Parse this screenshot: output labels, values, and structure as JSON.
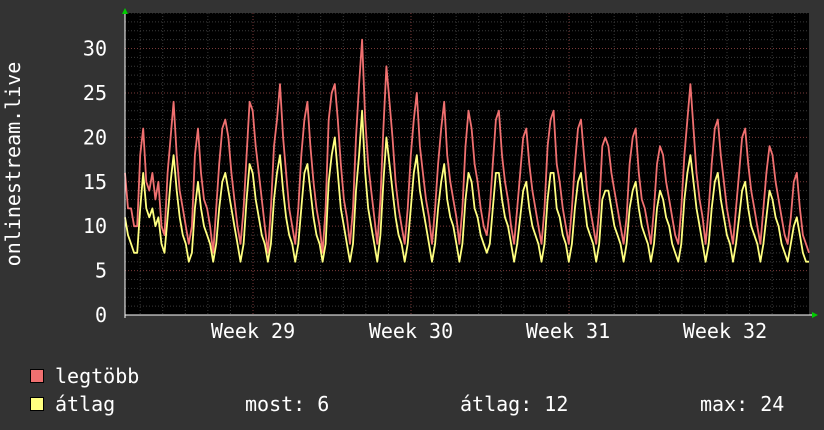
{
  "chart_data": {
    "type": "line",
    "ylabel": "onlinestream.live",
    "ylim": [
      0,
      34
    ],
    "y_ticks": [
      0,
      5,
      10,
      15,
      20,
      25,
      30
    ],
    "x_tick_labels": [
      "Week 29",
      "Week 30",
      "Week 31",
      "Week 32"
    ],
    "grid": true,
    "legend_placement": "bottom-left",
    "series": [
      {
        "name": "legtöbb",
        "color": "#f07070",
        "values": [
          16,
          12,
          12,
          10,
          10,
          18,
          21,
          15,
          14,
          16,
          13,
          15,
          10,
          9,
          16,
          20,
          24,
          18,
          14,
          12,
          10,
          8,
          10,
          18,
          21,
          16,
          13,
          12,
          10,
          7,
          12,
          17,
          21,
          22,
          20,
          16,
          13,
          10,
          8,
          12,
          18,
          24,
          23,
          19,
          16,
          13,
          10,
          7,
          12,
          19,
          22,
          26,
          20,
          16,
          12,
          10,
          8,
          12,
          18,
          22,
          24,
          19,
          15,
          12,
          10,
          7,
          12,
          22,
          25,
          26,
          22,
          17,
          13,
          11,
          8,
          12,
          20,
          26,
          31,
          22,
          17,
          14,
          11,
          8,
          13,
          21,
          28,
          24,
          20,
          15,
          12,
          10,
          8,
          12,
          18,
          22,
          25,
          19,
          16,
          13,
          11,
          8,
          12,
          17,
          21,
          24,
          18,
          15,
          13,
          11,
          8,
          12,
          19,
          23,
          21,
          17,
          15,
          12,
          10,
          9,
          12,
          17,
          22,
          23,
          18,
          15,
          13,
          10,
          8,
          12,
          16,
          20,
          21,
          17,
          14,
          12,
          10,
          8,
          12,
          19,
          22,
          23,
          17,
          15,
          12,
          10,
          8,
          12,
          17,
          21,
          22,
          18,
          14,
          12,
          10,
          8,
          12,
          19,
          20,
          19,
          16,
          14,
          12,
          10,
          8,
          11,
          17,
          20,
          21,
          16,
          13,
          12,
          10,
          8,
          12,
          17,
          19,
          18,
          15,
          13,
          11,
          9,
          8,
          12,
          18,
          22,
          26,
          21,
          16,
          13,
          11,
          8,
          12,
          17,
          21,
          22,
          18,
          15,
          12,
          10,
          8,
          12,
          16,
          20,
          21,
          17,
          14,
          12,
          10,
          8,
          12,
          16,
          19,
          18,
          15,
          13,
          11,
          9,
          8,
          11,
          15,
          16,
          12,
          9,
          8,
          7
        ]
      },
      {
        "name": "átlag",
        "color": "#ffff80",
        "values": [
          11,
          9,
          8,
          7,
          7,
          12,
          16,
          12,
          11,
          12,
          10,
          11,
          8,
          7,
          11,
          15,
          18,
          14,
          11,
          9,
          8,
          6,
          7,
          12,
          15,
          12,
          10,
          9,
          8,
          6,
          8,
          12,
          15,
          16,
          14,
          12,
          10,
          8,
          6,
          8,
          13,
          17,
          16,
          13,
          11,
          9,
          8,
          6,
          8,
          13,
          16,
          18,
          14,
          11,
          9,
          8,
          6,
          8,
          12,
          16,
          17,
          14,
          11,
          9,
          8,
          6,
          8,
          15,
          18,
          20,
          16,
          12,
          10,
          8,
          6,
          8,
          14,
          18,
          23,
          16,
          12,
          10,
          8,
          6,
          9,
          15,
          20,
          17,
          14,
          11,
          9,
          8,
          6,
          8,
          12,
          16,
          18,
          14,
          12,
          10,
          8,
          6,
          8,
          12,
          15,
          17,
          13,
          11,
          10,
          8,
          6,
          8,
          13,
          16,
          15,
          12,
          11,
          9,
          8,
          7,
          8,
          12,
          16,
          16,
          13,
          11,
          10,
          8,
          6,
          8,
          11,
          14,
          15,
          12,
          10,
          9,
          8,
          6,
          8,
          13,
          16,
          16,
          12,
          11,
          9,
          8,
          6,
          8,
          12,
          15,
          16,
          13,
          10,
          9,
          8,
          6,
          8,
          13,
          14,
          14,
          12,
          10,
          9,
          8,
          6,
          8,
          12,
          14,
          15,
          12,
          10,
          9,
          8,
          6,
          8,
          12,
          14,
          13,
          11,
          10,
          8,
          7,
          6,
          8,
          13,
          16,
          18,
          15,
          12,
          10,
          8,
          6,
          8,
          12,
          15,
          16,
          13,
          11,
          9,
          8,
          6,
          8,
          11,
          14,
          15,
          12,
          10,
          9,
          8,
          6,
          8,
          11,
          14,
          13,
          11,
          10,
          8,
          7,
          6,
          8,
          10,
          11,
          9,
          7,
          6,
          6
        ]
      }
    ]
  },
  "legend": [
    {
      "label": "legtöbb",
      "color": "#f07070"
    },
    {
      "label": "átlag",
      "color": "#ffff80"
    }
  ],
  "stats": {
    "most": "most: 6",
    "atlag": "átlag: 12",
    "max": "max: 24"
  }
}
